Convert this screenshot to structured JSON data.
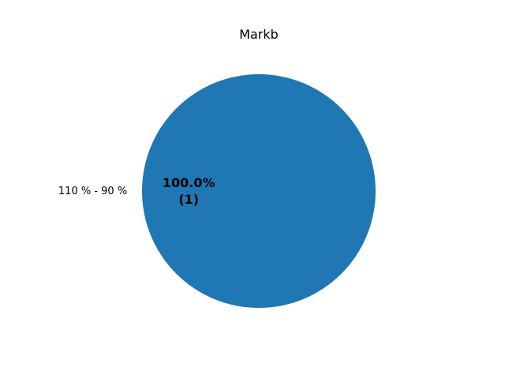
{
  "chart_data": {
    "type": "pie",
    "title": "Markb",
    "categories": [
      "110 % - 90 %"
    ],
    "values": [
      1
    ],
    "percent_labels": [
      "100.0%"
    ],
    "count_labels": [
      "(1)"
    ],
    "colors": [
      "#1f77b4"
    ],
    "legend": "none",
    "grid": false
  }
}
